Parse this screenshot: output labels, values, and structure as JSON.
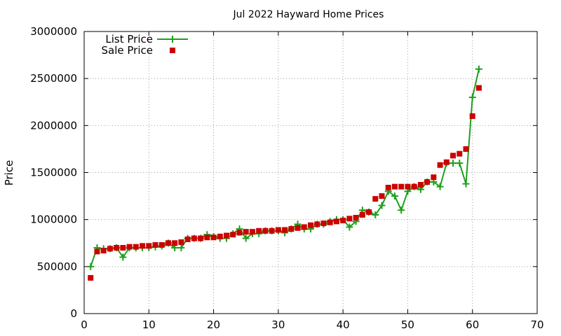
{
  "chart_data": {
    "type": "line",
    "title": "Jul 2022 Hayward Home Prices",
    "xlabel": "",
    "ylabel": "Price",
    "xlim": [
      0,
      70
    ],
    "ylim": [
      0,
      3000000
    ],
    "x_ticks": [
      0,
      10,
      20,
      30,
      40,
      50,
      60,
      70
    ],
    "x_tick_labels": [
      "0",
      "10",
      "20",
      "30",
      "40",
      "50",
      "60",
      "70"
    ],
    "y_ticks": [
      0,
      500000,
      1000000,
      1500000,
      2000000,
      2500000,
      3000000
    ],
    "y_tick_labels": [
      "0",
      "500000",
      "1000000",
      "1500000",
      "2000000",
      "2500000",
      "3000000"
    ],
    "grid": true,
    "legend_position": "top-left",
    "series": [
      {
        "name": "List Price",
        "style": "line-with-plus-markers",
        "color": "#1ca01c",
        "x": [
          1,
          2,
          3,
          4,
          5,
          6,
          7,
          8,
          9,
          10,
          11,
          12,
          13,
          14,
          15,
          16,
          17,
          18,
          19,
          20,
          21,
          22,
          23,
          24,
          25,
          26,
          27,
          28,
          29,
          30,
          31,
          32,
          33,
          34,
          35,
          36,
          37,
          38,
          39,
          40,
          41,
          42,
          43,
          44,
          45,
          46,
          47,
          48,
          49,
          50,
          51,
          52,
          53,
          54,
          55,
          56,
          57,
          58,
          59,
          60,
          61
        ],
        "values": [
          500000,
          700000,
          690000,
          690000,
          700000,
          600000,
          700000,
          700000,
          700000,
          700000,
          710000,
          720000,
          750000,
          700000,
          700000,
          800000,
          800000,
          800000,
          840000,
          820000,
          800000,
          800000,
          850000,
          900000,
          800000,
          850000,
          850000,
          880000,
          880000,
          880000,
          860000,
          900000,
          950000,
          900000,
          900000,
          950000,
          950000,
          980000,
          1000000,
          1000000,
          920000,
          980000,
          1100000,
          1080000,
          1050000,
          1150000,
          1300000,
          1250000,
          1100000,
          1300000,
          1350000,
          1320000,
          1400000,
          1400000,
          1350000,
          1600000,
          1600000,
          1600000,
          1380000,
          2300000,
          2600000
        ]
      },
      {
        "name": "Sale Price",
        "style": "square-markers",
        "color": "#cc0000",
        "x": [
          1,
          2,
          3,
          4,
          5,
          6,
          7,
          8,
          9,
          10,
          11,
          12,
          13,
          14,
          15,
          16,
          17,
          18,
          19,
          20,
          21,
          22,
          23,
          24,
          25,
          26,
          27,
          28,
          29,
          30,
          31,
          32,
          33,
          34,
          35,
          36,
          37,
          38,
          39,
          40,
          41,
          42,
          43,
          44,
          45,
          46,
          47,
          48,
          49,
          50,
          51,
          52,
          53,
          54,
          55,
          56,
          57,
          58,
          59,
          60,
          61
        ],
        "values": [
          380000,
          660000,
          670000,
          690000,
          700000,
          700000,
          710000,
          710000,
          720000,
          720000,
          730000,
          730000,
          750000,
          750000,
          760000,
          790000,
          800000,
          800000,
          810000,
          810000,
          820000,
          830000,
          840000,
          860000,
          870000,
          870000,
          880000,
          880000,
          880000,
          890000,
          890000,
          900000,
          910000,
          920000,
          940000,
          950000,
          960000,
          970000,
          980000,
          990000,
          1010000,
          1020000,
          1050000,
          1080000,
          1220000,
          1250000,
          1340000,
          1350000,
          1350000,
          1350000,
          1350000,
          1370000,
          1400000,
          1450000,
          1580000,
          1610000,
          1680000,
          1700000,
          1750000,
          2100000,
          2400000
        ]
      }
    ]
  }
}
